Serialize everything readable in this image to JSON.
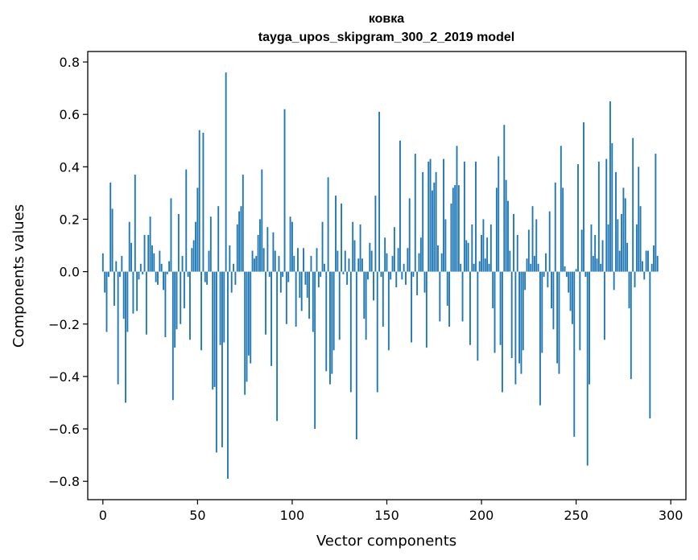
{
  "chart_data": {
    "type": "bar",
    "title": "ковка",
    "subtitle": "tayga_upos_skipgram_300_2_2019 model",
    "xlabel": "Vector components",
    "ylabel": "Components values",
    "xlim": [
      -8,
      308
    ],
    "ylim": [
      -0.87,
      0.84
    ],
    "x_ticks": [
      0,
      50,
      100,
      150,
      200,
      250,
      300
    ],
    "y_ticks": [
      -0.8,
      -0.6,
      -0.4,
      -0.2,
      0.0,
      0.2,
      0.4,
      0.6,
      0.8
    ],
    "x_tick_labels": [
      "0",
      "50",
      "100",
      "150",
      "200",
      "250",
      "300"
    ],
    "y_tick_labels": [
      "−0.8",
      "−0.6",
      "−0.4",
      "−0.2",
      "0.0",
      "0.2",
      "0.4",
      "0.6",
      "0.8"
    ],
    "bar_color": "#1f77b4",
    "series": [
      {
        "name": "ковка",
        "values": [
          0.07,
          -0.08,
          -0.23,
          -0.02,
          0.34,
          0.24,
          -0.13,
          0.04,
          -0.43,
          -0.02,
          0.06,
          -0.18,
          -0.5,
          -0.23,
          0.19,
          0.11,
          -0.16,
          0.37,
          -0.15,
          -0.03,
          0.03,
          -0.01,
          0.14,
          -0.24,
          0.14,
          0.21,
          0.1,
          0.07,
          -0.04,
          -0.05,
          0.08,
          0.03,
          -0.07,
          -0.25,
          -0.01,
          0.04,
          0.28,
          -0.49,
          -0.29,
          -0.22,
          0.22,
          -0.2,
          0.06,
          -0.14,
          0.39,
          -0.02,
          -0.26,
          0.09,
          0.12,
          0.19,
          0.32,
          0.54,
          -0.3,
          0.53,
          -0.04,
          -0.05,
          0.08,
          0.21,
          -0.45,
          -0.44,
          -0.69,
          0.25,
          -0.28,
          -0.67,
          -0.27,
          0.76,
          -0.79,
          0.1,
          -0.08,
          0.03,
          -0.05,
          0.18,
          0.23,
          0.25,
          0.37,
          -0.47,
          -0.42,
          -0.32,
          -0.35,
          0.08,
          0.05,
          0.06,
          0.14,
          0.2,
          0.39,
          0.09,
          -0.24,
          0.17,
          -0.02,
          -0.36,
          0.15,
          0.08,
          -0.57,
          0.06,
          -0.08,
          -0.02,
          0.62,
          -0.2,
          -0.04,
          0.21,
          0.19,
          0.06,
          -0.21,
          0.09,
          -0.1,
          -0.15,
          0.09,
          -0.05,
          -0.1,
          -0.18,
          0.06,
          -0.23,
          -0.6,
          0.09,
          -0.06,
          -0.02,
          0.19,
          0.03,
          -0.38,
          0.36,
          -0.43,
          -0.39,
          -0.3,
          0.29,
          0.08,
          -0.26,
          0.26,
          -0.01,
          0.08,
          -0.05,
          0.05,
          -0.46,
          0.19,
          0.12,
          -0.64,
          0.05,
          0.18,
          0.05,
          -0.18,
          -0.26,
          -0.03,
          0.11,
          0.08,
          -0.11,
          0.29,
          -0.46,
          0.61,
          -0.02,
          -0.21,
          0.13,
          0.07,
          -0.3,
          -0.03,
          0.06,
          0.17,
          -0.06,
          0.09,
          0.5,
          -0.03,
          0.03,
          -0.05,
          0.09,
          0.28,
          -0.27,
          -0.02,
          0.45,
          -0.09,
          0.07,
          0.13,
          0.38,
          -0.08,
          -0.29,
          0.42,
          0.43,
          0.31,
          0.34,
          0.38,
          0.1,
          -0.19,
          0.07,
          0.43,
          0.2,
          -0.13,
          -0.21,
          0.26,
          0.32,
          0.33,
          0.48,
          0.33,
          0.03,
          -0.19,
          0.42,
          0.12,
          0.11,
          -0.28,
          0.18,
          0.03,
          0.42,
          -0.34,
          0.04,
          0.14,
          0.2,
          0.05,
          0.13,
          0.03,
          0.18,
          -0.14,
          -0.31,
          0.32,
          0.44,
          -0.28,
          -0.46,
          0.56,
          0.35,
          0.27,
          0.08,
          -0.33,
          0.22,
          -0.43,
          0.14,
          -0.35,
          -0.39,
          -0.3,
          -0.07,
          0.05,
          0.16,
          0.03,
          0.25,
          0.06,
          0.2,
          0.03,
          -0.51,
          -0.31,
          -0.02,
          0.07,
          -0.06,
          0.23,
          -0.14,
          -0.22,
          0.34,
          -0.35,
          -0.39,
          0.48,
          0.32,
          0.02,
          -0.02,
          -0.08,
          -0.15,
          -0.2,
          -0.63,
          0.01,
          0.41,
          -0.3,
          0.16,
          0.57,
          -0.02,
          -0.74,
          -0.43,
          0.18,
          0.06,
          0.14,
          0.05,
          0.42,
          0.03,
          0.12,
          -0.26,
          0.43,
          0.18,
          0.65,
          0.49,
          -0.07,
          0.38,
          0.2,
          0.08,
          0.22,
          0.32,
          0.28,
          0.11,
          -0.14,
          -0.41,
          0.51,
          -0.06,
          0.18,
          0.4,
          0.25,
          0.04,
          -0.03,
          0.08,
          0.08,
          -0.56,
          0.03,
          0.1,
          0.45,
          0.06
        ]
      }
    ]
  }
}
